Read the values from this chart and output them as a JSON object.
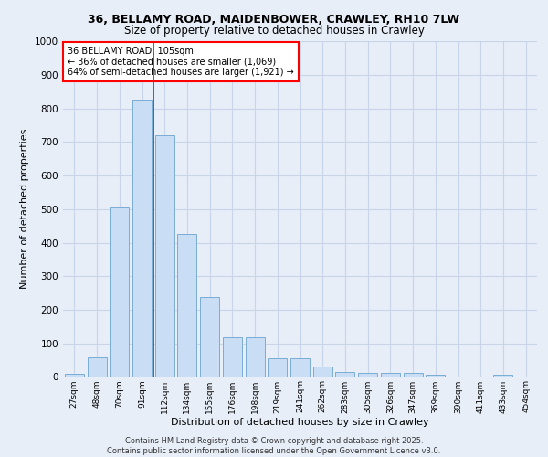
{
  "title_line1": "36, BELLAMY ROAD, MAIDENBOWER, CRAWLEY, RH10 7LW",
  "title_line2": "Size of property relative to detached houses in Crawley",
  "xlabel": "Distribution of detached houses by size in Crawley",
  "ylabel": "Number of detached properties",
  "categories": [
    "27sqm",
    "48sqm",
    "70sqm",
    "91sqm",
    "112sqm",
    "134sqm",
    "155sqm",
    "176sqm",
    "198sqm",
    "219sqm",
    "241sqm",
    "262sqm",
    "283sqm",
    "305sqm",
    "326sqm",
    "347sqm",
    "369sqm",
    "390sqm",
    "411sqm",
    "433sqm",
    "454sqm"
  ],
  "values": [
    10,
    58,
    505,
    825,
    720,
    425,
    238,
    118,
    118,
    57,
    57,
    30,
    15,
    13,
    13,
    12,
    8,
    0,
    0,
    8,
    0
  ],
  "bar_color": "#c9ddf5",
  "bar_edge_color": "#7aadd4",
  "grid_color": "#c8d4e8",
  "background_color": "#e8eef8",
  "vline_color": "red",
  "vline_pos": 3.5,
  "annotation_box_text": "36 BELLAMY ROAD: 105sqm\n← 36% of detached houses are smaller (1,069)\n64% of semi-detached houses are larger (1,921) →",
  "annotation_box_color": "red",
  "annotation_box_fill": "white",
  "footer_text": "Contains HM Land Registry data © Crown copyright and database right 2025.\nContains public sector information licensed under the Open Government Licence v3.0.",
  "ylim": [
    0,
    1000
  ],
  "yticks": [
    0,
    100,
    200,
    300,
    400,
    500,
    600,
    700,
    800,
    900,
    1000
  ]
}
